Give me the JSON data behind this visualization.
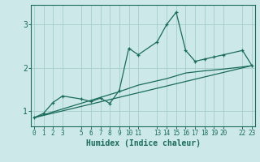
{
  "title": "",
  "xlabel": "Humidex (Indice chaleur)",
  "ylabel": "",
  "bg_color": "#cce8e8",
  "grid_color": "#aad0d0",
  "line_color": "#1a6b5a",
  "xlim": [
    -0.3,
    23.3
  ],
  "ylim": [
    0.65,
    3.45
  ],
  "yticks": [
    1,
    2,
    3
  ],
  "xticks": [
    0,
    1,
    2,
    3,
    5,
    6,
    7,
    8,
    9,
    10,
    11,
    13,
    14,
    15,
    16,
    17,
    18,
    19,
    20,
    22,
    23
  ],
  "xtick_labels": [
    "0",
    "1",
    "2",
    "3",
    "5",
    "6",
    "7",
    "8",
    "9",
    "10",
    "11",
    "13",
    "14",
    "15",
    "16",
    "17",
    "18",
    "19",
    "20",
    "22",
    "23"
  ],
  "series1_x": [
    0,
    1,
    2,
    3,
    5,
    6,
    7,
    8,
    9,
    10,
    11,
    13,
    14,
    15,
    16,
    17,
    18,
    19,
    20,
    22,
    23
  ],
  "series1_y": [
    0.85,
    0.95,
    1.2,
    1.35,
    1.28,
    1.22,
    1.3,
    1.18,
    1.48,
    2.45,
    2.3,
    2.6,
    3.0,
    3.28,
    2.4,
    2.15,
    2.2,
    2.25,
    2.3,
    2.4,
    2.05
  ],
  "series2_x": [
    0,
    23
  ],
  "series2_y": [
    0.85,
    2.05
  ],
  "series3_x": [
    0,
    3,
    6,
    9,
    11,
    14,
    16,
    18,
    20,
    22,
    23
  ],
  "series3_y": [
    0.85,
    1.05,
    1.25,
    1.45,
    1.6,
    1.75,
    1.88,
    1.93,
    1.97,
    2.02,
    2.05
  ]
}
